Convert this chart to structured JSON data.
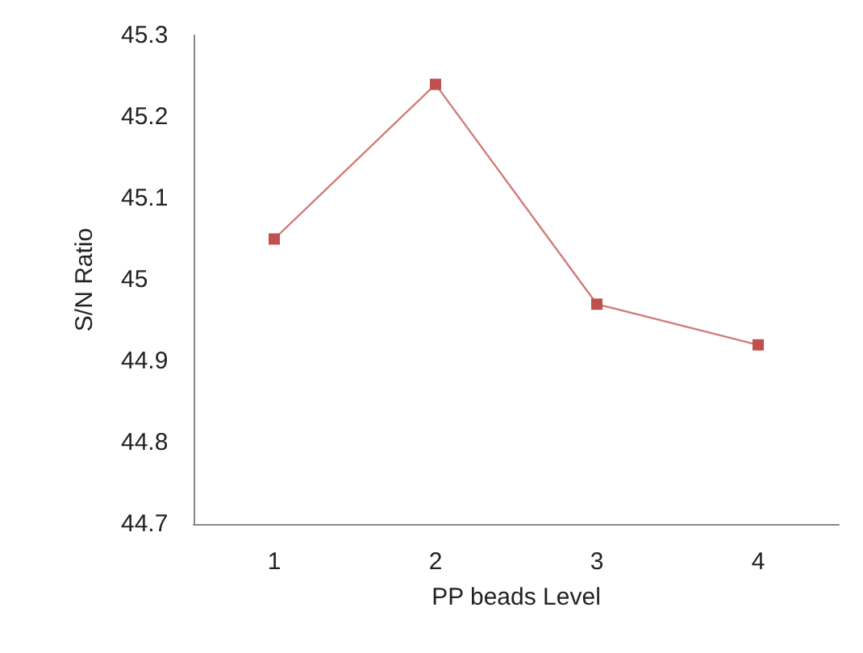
{
  "chart_data": {
    "type": "line",
    "xlabel": "PP beads Level",
    "ylabel": "S/N Ratio",
    "categories": [
      "1",
      "2",
      "3",
      "4"
    ],
    "series": [
      {
        "color": "#c0504d",
        "values": [
          45.05,
          45.24,
          44.97,
          44.92
        ]
      }
    ],
    "ylim": [
      44.7,
      45.3
    ],
    "yticks": [
      44.7,
      44.8,
      44.9,
      45,
      45.1,
      45.2,
      45.3
    ],
    "grid": false,
    "marker": "square",
    "line_style": "solid"
  }
}
